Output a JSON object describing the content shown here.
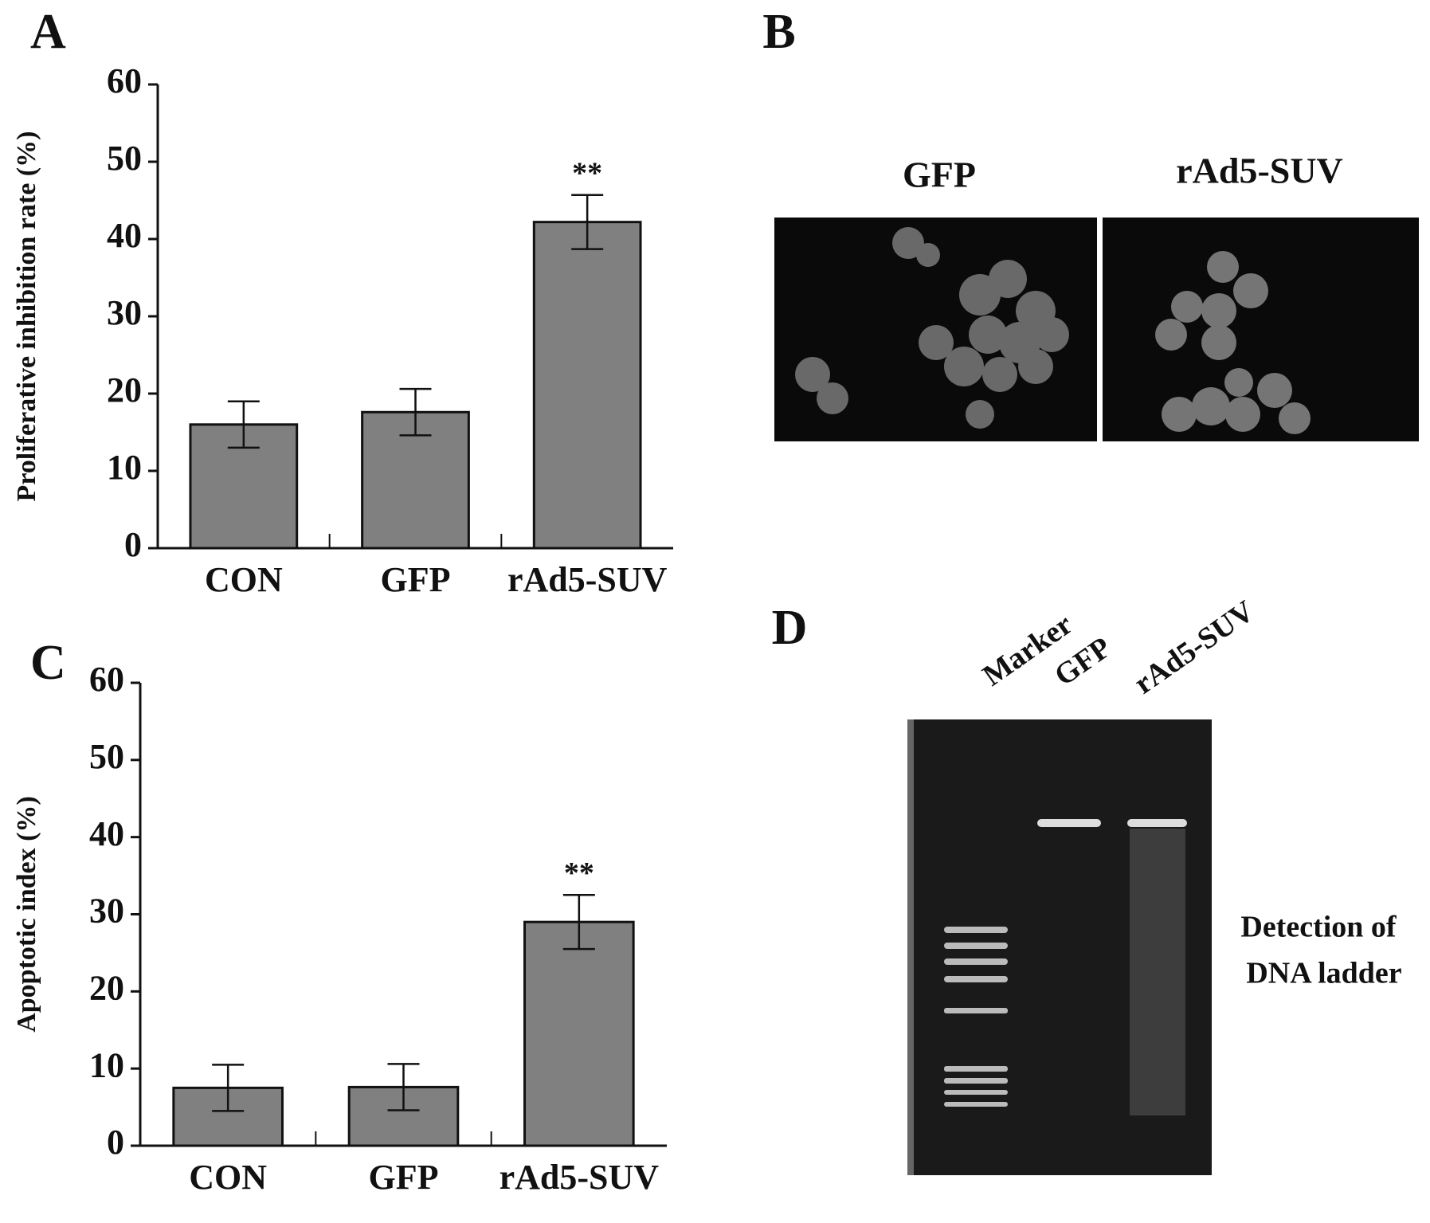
{
  "chart_data": [
    {
      "type": "bar",
      "panel": "A",
      "ylabel": "Proliferative inhibition rate (%)",
      "categories": [
        "CON",
        "GFP",
        "rAd5-SUV"
      ],
      "values": [
        16,
        17.6,
        42.2
      ],
      "errors": [
        3,
        3,
        3.5
      ],
      "color": "#808080",
      "ylim": [
        0,
        60
      ],
      "yticks": [
        0,
        10,
        20,
        30,
        40,
        50,
        60
      ],
      "grid": false,
      "annotations": [
        {
          "category": "rAd5-SUV",
          "text": "**"
        }
      ]
    },
    {
      "type": "bar",
      "panel": "C",
      "ylabel": "Apoptotic index (%)",
      "categories": [
        "CON",
        "GFP",
        "rAd5-SUV"
      ],
      "values": [
        7.5,
        7.6,
        29
      ],
      "errors": [
        3,
        3,
        3.5
      ],
      "color": "#808080",
      "ylim": [
        0,
        60
      ],
      "yticks": [
        0,
        10,
        20,
        30,
        40,
        50,
        60
      ],
      "grid": false,
      "annotations": [
        {
          "category": "rAd5-SUV",
          "text": "**"
        }
      ]
    }
  ],
  "panel_b": {
    "label": "B",
    "captions": [
      "GFP",
      "rAd5-SUV"
    ]
  },
  "panel_d": {
    "label": "D",
    "lanes": [
      "Marker",
      "GFP",
      "rAd5-SUV"
    ],
    "caption": [
      "Detection of",
      "DNA ladder"
    ]
  }
}
